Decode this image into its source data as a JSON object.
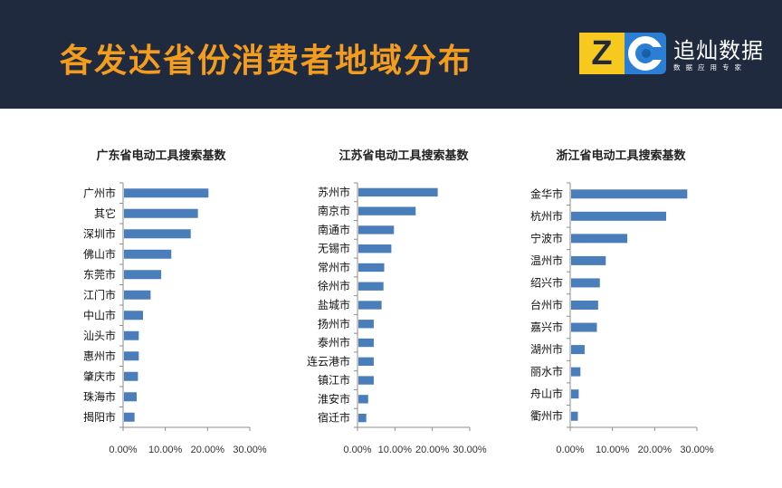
{
  "header": {
    "title": "各发达省份消费者地域分布",
    "logo_letters": "ZC",
    "logo_name": "追灿数据",
    "logo_tagline": "数据应用专家"
  },
  "colors": {
    "header_bg": "#1f2a3f",
    "title": "#f39c1e",
    "bar": "#4a7ebb",
    "logo_yellow": "#f7c81e",
    "logo_blue": "#2a7fd4"
  },
  "chart_data": [
    {
      "type": "bar",
      "orientation": "horizontal",
      "title": "广东省电动工具搜索基数",
      "categories": [
        "广州市",
        "其它",
        "深圳市",
        "佛山市",
        "东莞市",
        "江门市",
        "中山市",
        "汕头市",
        "惠州市",
        "肇庆市",
        "珠海市",
        "揭阳市"
      ],
      "values": [
        0.2,
        0.175,
        0.158,
        0.112,
        0.088,
        0.063,
        0.045,
        0.035,
        0.035,
        0.033,
        0.03,
        0.025
      ],
      "xlim": [
        0,
        0.3
      ],
      "xticks": [
        "0.00%",
        "10.00%",
        "20.00%",
        "30.00%"
      ],
      "xtick_values": [
        0,
        0.1,
        0.2,
        0.3
      ]
    },
    {
      "type": "bar",
      "orientation": "horizontal",
      "title": "江苏省电动工具搜索基数",
      "categories": [
        "苏州市",
        "南京市",
        "南通市",
        "无锡市",
        "常州市",
        "徐州市",
        "盐城市",
        "扬州市",
        "泰州市",
        "连云港市",
        "镇江市",
        "淮安市",
        "宿迁市"
      ],
      "values": [
        0.212,
        0.153,
        0.095,
        0.088,
        0.069,
        0.067,
        0.062,
        0.041,
        0.041,
        0.041,
        0.041,
        0.026,
        0.021
      ],
      "xlim": [
        0,
        0.3
      ],
      "xticks": [
        "0.00%",
        "10.00%",
        "20.00%",
        "30.00%"
      ],
      "xtick_values": [
        0,
        0.1,
        0.2,
        0.3
      ]
    },
    {
      "type": "bar",
      "orientation": "horizontal",
      "title": "浙江省电动工具搜索基数",
      "categories": [
        "金华市",
        "杭州市",
        "宁波市",
        "温州市",
        "绍兴市",
        "台州市",
        "嘉兴市",
        "湖州市",
        "丽水市",
        "舟山市",
        "衢州市"
      ],
      "values": [
        0.275,
        0.225,
        0.133,
        0.082,
        0.068,
        0.064,
        0.061,
        0.032,
        0.022,
        0.018,
        0.016
      ],
      "xlim": [
        0,
        0.3
      ],
      "xticks": [
        "0.00%",
        "10.00%",
        "20.00%",
        "30.00%"
      ],
      "xtick_values": [
        0,
        0.1,
        0.2,
        0.3
      ]
    }
  ]
}
